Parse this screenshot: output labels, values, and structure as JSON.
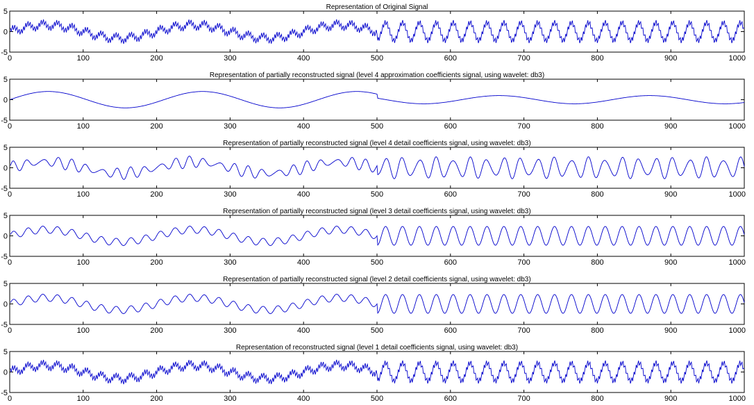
{
  "figure": {
    "background": "#ffffff",
    "line_color": "#0000cc"
  },
  "chart_data": [
    {
      "type": "line",
      "title": "Representation of Original Signal",
      "xlim": [
        0,
        1000
      ],
      "ylim": [
        -5,
        5
      ],
      "xticks": [
        0,
        100,
        200,
        300,
        400,
        500,
        600,
        700,
        800,
        900,
        1000
      ],
      "yticks": [
        -5,
        0,
        5
      ],
      "grid": false,
      "series": [
        {
          "n_points": 1000,
          "x_range": [
            1,
            1000
          ],
          "components": [
            {
              "amplitude": 1.6,
              "period": 200,
              "segment": [
                1,
                500
              ]
            },
            {
              "amplitude": 0.8,
              "period": 20,
              "segment": [
                1,
                500
              ]
            },
            {
              "amplitude": 2.2,
              "period": 23,
              "segment": [
                501,
                1000
              ]
            },
            {
              "amplitude": 0.7,
              "period": 3,
              "segment": [
                1,
                1000
              ]
            }
          ]
        }
      ]
    },
    {
      "type": "line",
      "title": "Representation of partially reconstructed signal (level 4 approximation coefficients signal, using wavelet: db3)",
      "xlim": [
        0,
        1000
      ],
      "ylim": [
        -5,
        5
      ],
      "xticks": [
        0,
        100,
        200,
        300,
        400,
        500,
        600,
        700,
        800,
        900,
        1000
      ],
      "yticks": [
        -5,
        0,
        5
      ],
      "grid": false,
      "series": [
        {
          "n_points": 1000,
          "x_range": [
            1,
            1000
          ],
          "components": [
            {
              "amplitude": 2.0,
              "period": 210,
              "segment": [
                1,
                500
              ]
            },
            {
              "amplitude": 1.0,
              "period": 205,
              "segment": [
                501,
                1000
              ]
            }
          ]
        }
      ]
    },
    {
      "type": "line",
      "title": "Representation of partially reconstructed signal (level 4 detail coefficients signal, using wavelet: db3)",
      "xlim": [
        0,
        1000
      ],
      "ylim": [
        -5,
        5
      ],
      "xticks": [
        0,
        100,
        200,
        300,
        400,
        500,
        600,
        700,
        800,
        900,
        1000
      ],
      "yticks": [
        -5,
        0,
        5
      ],
      "grid": false,
      "series": [
        {
          "n_points": 1000,
          "x_range": [
            1,
            1000
          ],
          "components": [
            {
              "amplitude": 1.4,
              "period": 200,
              "segment": [
                1,
                500
              ]
            },
            {
              "amplitude": 1.0,
              "period": 20,
              "segment": [
                1,
                500
              ]
            },
            {
              "amplitude": 2.2,
              "period": 23,
              "segment": [
                501,
                1000
              ]
            },
            {
              "amplitude": 0.5,
              "period": 16,
              "segment": [
                1,
                1000
              ]
            }
          ]
        }
      ]
    },
    {
      "type": "line",
      "title": "Representation of partially reconstructed signal (level 3 detail coefficients signal, using wavelet: db3)",
      "xlim": [
        0,
        1000
      ],
      "ylim": [
        -5,
        5
      ],
      "xticks": [
        0,
        100,
        200,
        300,
        400,
        500,
        600,
        700,
        800,
        900,
        1000
      ],
      "yticks": [
        -5,
        0,
        5
      ],
      "grid": false,
      "series": [
        {
          "n_points": 1000,
          "x_range": [
            1,
            1000
          ],
          "components": [
            {
              "amplitude": 1.5,
              "period": 200,
              "segment": [
                1,
                500
              ]
            },
            {
              "amplitude": 0.9,
              "period": 20,
              "segment": [
                1,
                500
              ]
            },
            {
              "amplitude": 2.3,
              "period": 23,
              "segment": [
                501,
                1000
              ]
            }
          ]
        }
      ]
    },
    {
      "type": "line",
      "title": "Representation of partially reconstructed signal (level 2 detail coefficients signal, using wavelet: db3)",
      "xlim": [
        0,
        1000
      ],
      "ylim": [
        -5,
        5
      ],
      "xticks": [
        0,
        100,
        200,
        300,
        400,
        500,
        600,
        700,
        800,
        900,
        1000
      ],
      "yticks": [
        -5,
        0,
        5
      ],
      "grid": false,
      "series": [
        {
          "n_points": 1000,
          "x_range": [
            1,
            1000
          ],
          "components": [
            {
              "amplitude": 1.5,
              "period": 200,
              "segment": [
                1,
                500
              ]
            },
            {
              "amplitude": 0.9,
              "period": 20,
              "segment": [
                1,
                500
              ]
            },
            {
              "amplitude": 2.3,
              "period": 23,
              "segment": [
                501,
                1000
              ]
            }
          ]
        }
      ]
    },
    {
      "type": "line",
      "title": "Representation of reconstructed signal (level 1 detail coefficients signal, using wavelet: db3)",
      "xlim": [
        0,
        1000
      ],
      "ylim": [
        -5,
        5
      ],
      "xticks": [
        0,
        100,
        200,
        300,
        400,
        500,
        600,
        700,
        800,
        900,
        1000
      ],
      "yticks": [
        -5,
        0,
        5
      ],
      "grid": false,
      "series": [
        {
          "n_points": 1000,
          "x_range": [
            1,
            1000
          ],
          "components": [
            {
              "amplitude": 1.6,
              "period": 200,
              "segment": [
                1,
                500
              ]
            },
            {
              "amplitude": 0.8,
              "period": 20,
              "segment": [
                1,
                500
              ]
            },
            {
              "amplitude": 2.2,
              "period": 23,
              "segment": [
                501,
                1000
              ]
            },
            {
              "amplitude": 0.7,
              "period": 3,
              "segment": [
                1,
                1000
              ]
            }
          ]
        }
      ]
    }
  ]
}
